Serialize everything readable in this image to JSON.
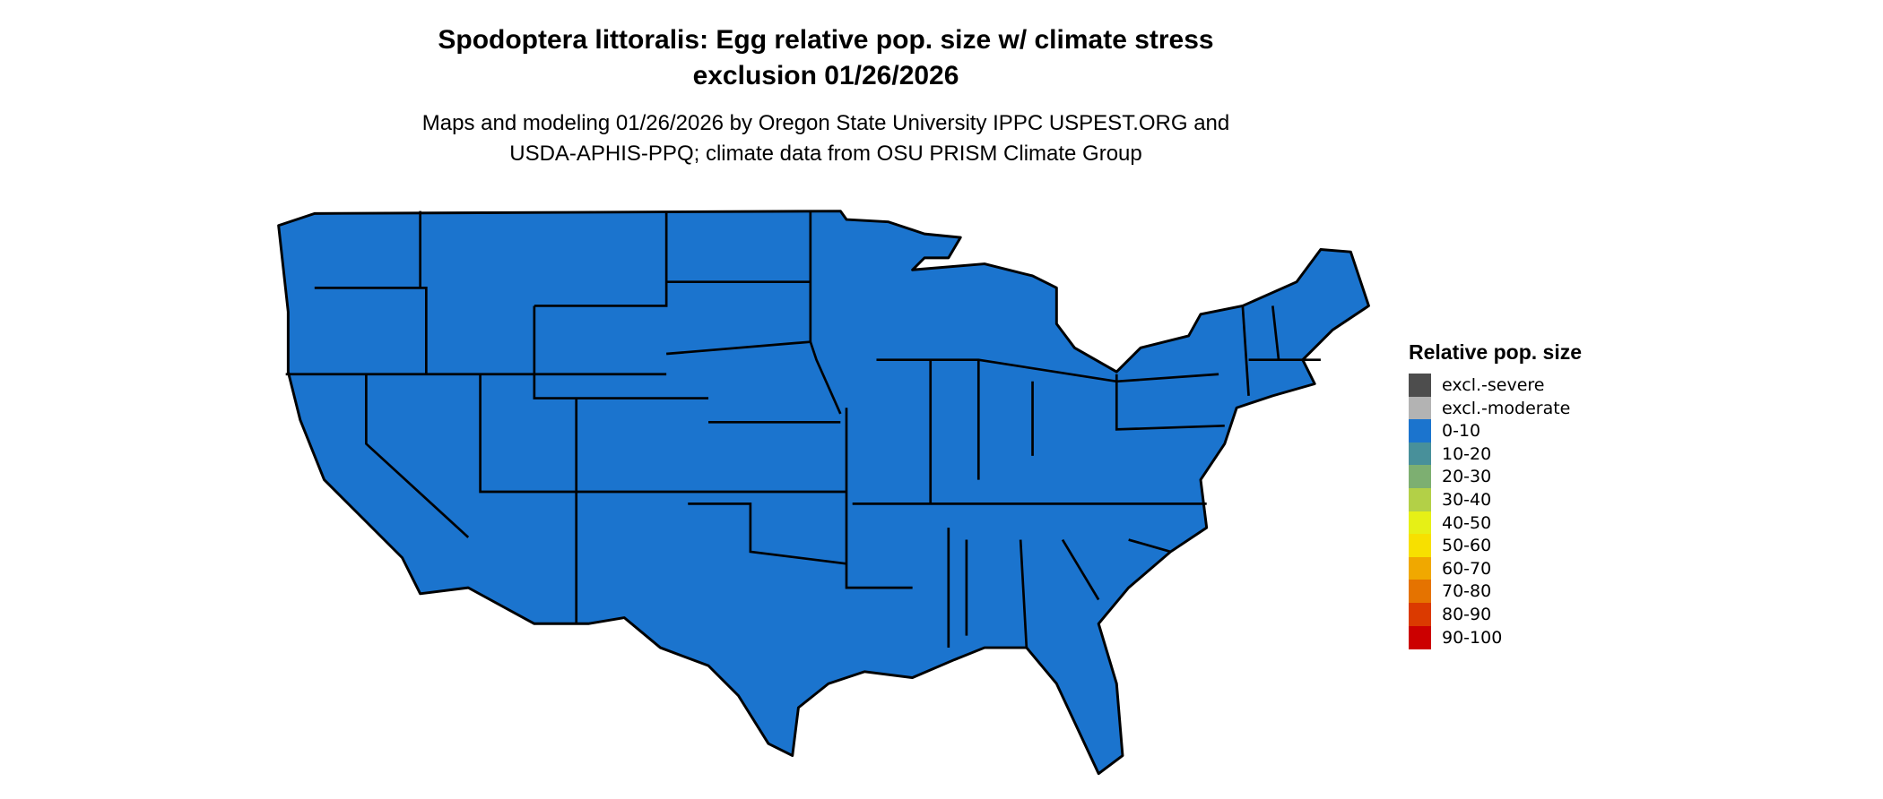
{
  "title_line1": "Spodoptera littoralis: Egg relative pop. size w/ climate stress",
  "title_line2": "exclusion 01/26/2026",
  "subtitle_line1": "Maps and modeling 01/26/2026 by Oregon State University IPPC USPEST.ORG and",
  "subtitle_line2": "USDA-APHIS-PPQ; climate data from OSU PRISM Climate Group",
  "map_fill_color": "#1B74CE",
  "map_fill_category": "0-10",
  "legend": {
    "title": "Relative pop. size",
    "items": [
      {
        "label": "excl.-severe",
        "color": "#4D4D4D"
      },
      {
        "label": "excl.-moderate",
        "color": "#B3B3B3"
      },
      {
        "label": "0-10",
        "color": "#1B74CE"
      },
      {
        "label": "10-20",
        "color": "#48909A"
      },
      {
        "label": "20-30",
        "color": "#7DAF71"
      },
      {
        "label": "30-40",
        "color": "#B3D047"
      },
      {
        "label": "40-50",
        "color": "#E6F016"
      },
      {
        "label": "50-60",
        "color": "#F7E000"
      },
      {
        "label": "60-70",
        "color": "#F0A800"
      },
      {
        "label": "70-80",
        "color": "#E57300"
      },
      {
        "label": "80-90",
        "color": "#DB3A00"
      },
      {
        "label": "90-100",
        "color": "#CC0000"
      }
    ]
  }
}
